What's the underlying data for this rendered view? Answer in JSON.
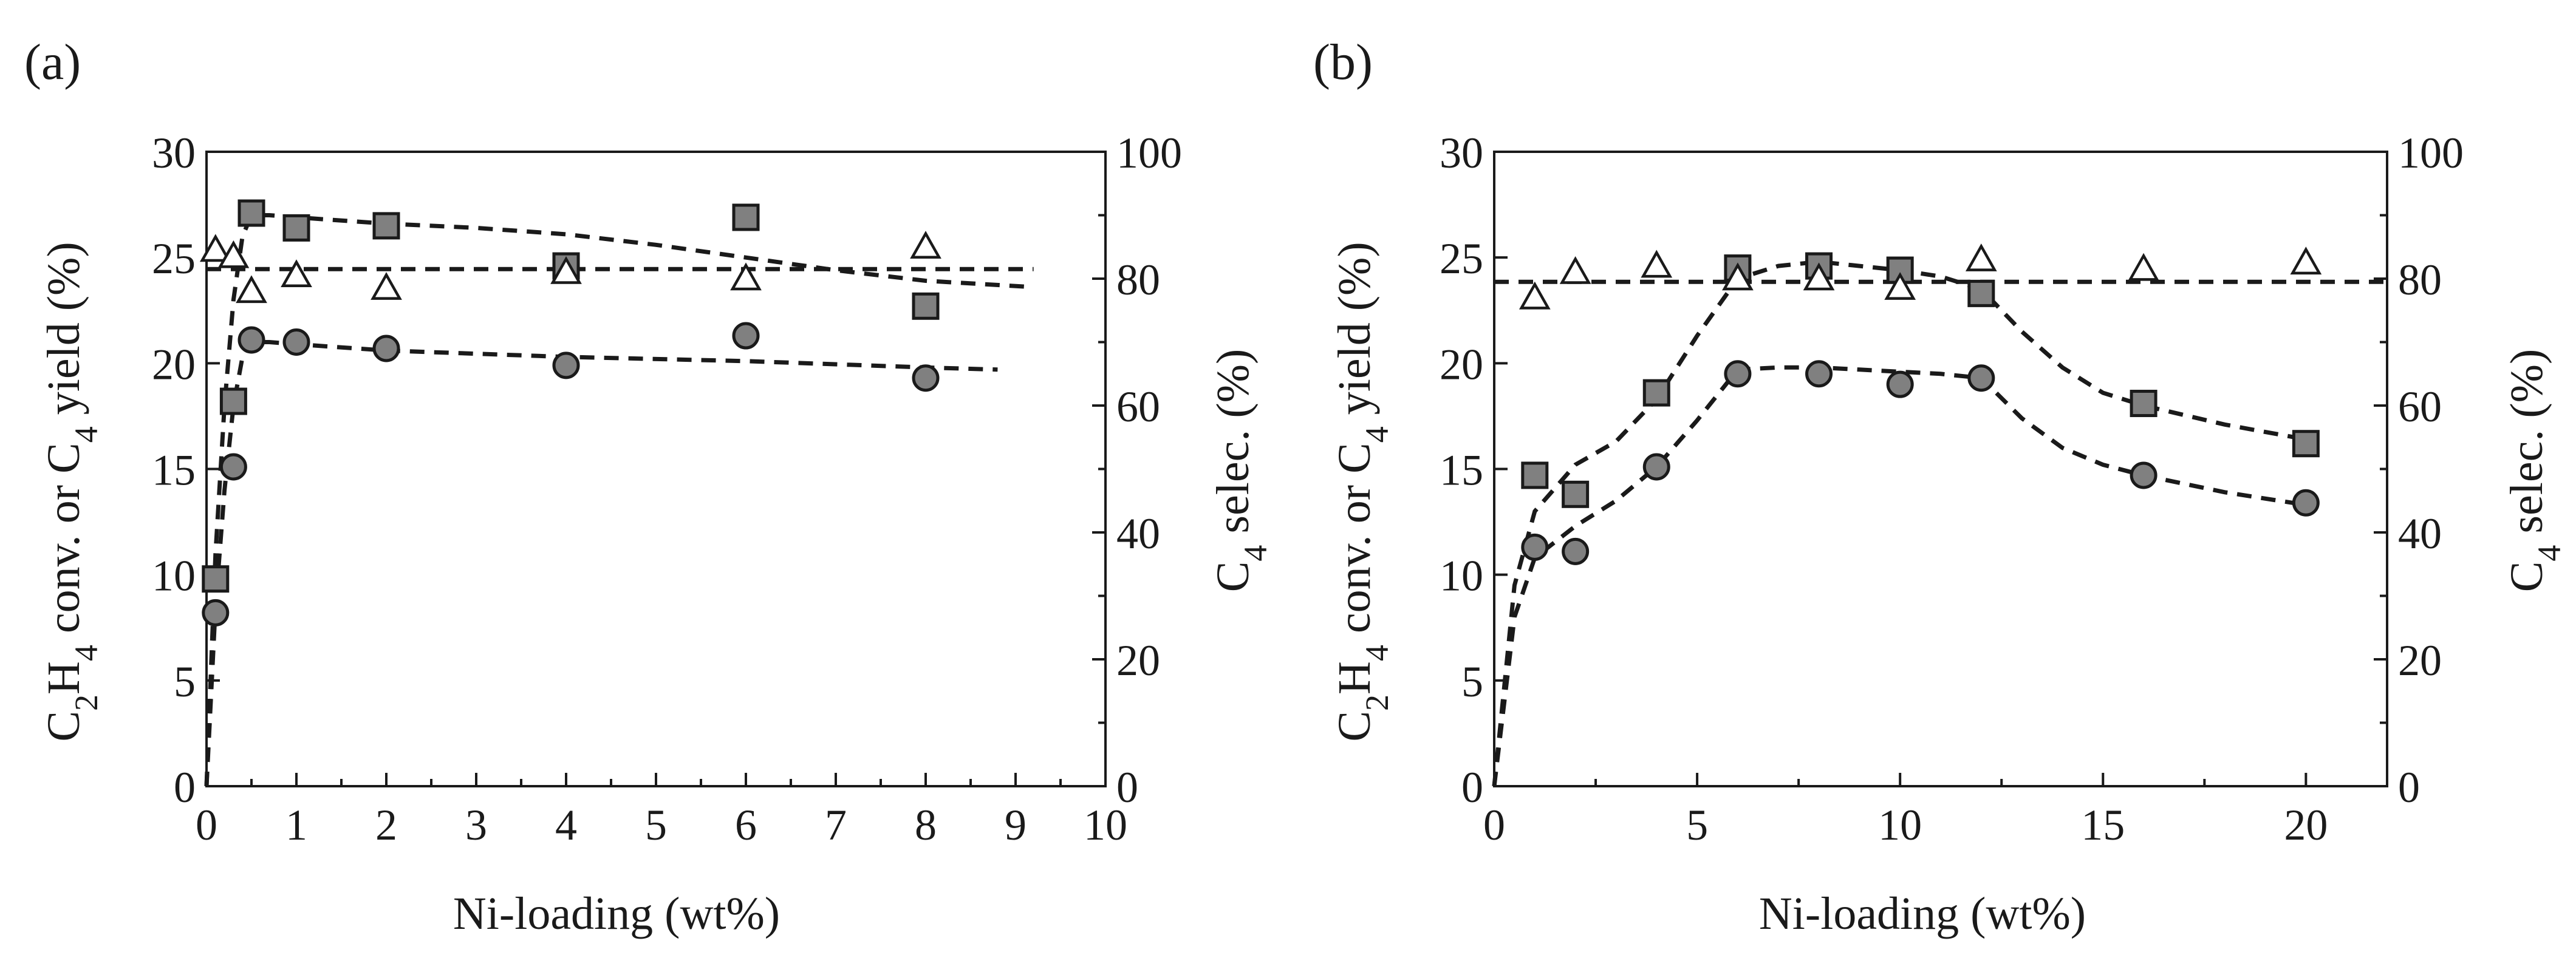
{
  "chart_data": [
    {
      "type": "scatter",
      "panel_label": "(a)",
      "xlabel": "Ni-loading (wt%)",
      "ylabel_left": {
        "prefix": "C",
        "s1": "2",
        "mid1": "H",
        "s2": "4",
        "mid2": " conv. or C",
        "s3": "4",
        "suffix": " yield (%)"
      },
      "ylabel_right": {
        "prefix": "C",
        "s1": "4",
        "suffix": " selec. (%)"
      },
      "xlim": [
        0,
        10
      ],
      "ylim_left": [
        0,
        30
      ],
      "ylim_right": [
        0,
        100
      ],
      "xticks": [
        "0",
        "1",
        "2",
        "3",
        "4",
        "5",
        "6",
        "7",
        "8",
        "9",
        "10"
      ],
      "yticks_left": [
        "0",
        "5",
        "10",
        "15",
        "20",
        "25",
        "30"
      ],
      "yticks_right": [
        "0",
        "20",
        "40",
        "60",
        "80",
        "100"
      ],
      "series": [
        {
          "name": "C2H4 conversion",
          "marker": "square",
          "axis": "left",
          "x": [
            0.1,
            0.3,
            0.5,
            1,
            2,
            4,
            6,
            8
          ],
          "y": [
            9.8,
            18.2,
            27.1,
            26.4,
            26.5,
            24.6,
            26.9,
            22.7
          ]
        },
        {
          "name": "C4 yield",
          "marker": "circle",
          "axis": "left",
          "x": [
            0.1,
            0.3,
            0.5,
            1,
            2,
            4,
            6,
            8
          ],
          "y": [
            8.2,
            15.1,
            21.1,
            21.0,
            20.7,
            19.9,
            21.3,
            19.3
          ]
        },
        {
          "name": "C4 selectivity",
          "marker": "triangle",
          "axis": "right",
          "x": [
            0.1,
            0.3,
            0.5,
            1,
            2,
            4,
            6,
            8
          ],
          "y": [
            84.5,
            83.5,
            78.0,
            80.5,
            78.5,
            81.0,
            80.0,
            85.0
          ]
        }
      ],
      "fits": [
        {
          "axis": "left",
          "x": [
            0,
            0.1,
            0.2,
            0.3,
            0.4,
            0.5,
            0.7,
            1,
            2,
            3,
            4,
            5,
            6,
            7,
            8,
            9.2
          ],
          "y": [
            0,
            11,
            18,
            23,
            26,
            27,
            27,
            26.9,
            26.6,
            26.4,
            26.1,
            25.6,
            25,
            24.4,
            23.9,
            23.6
          ]
        },
        {
          "axis": "left",
          "x": [
            0,
            0.1,
            0.2,
            0.3,
            0.4,
            0.5,
            0.7,
            1,
            2,
            4,
            6,
            8,
            8.8
          ],
          "y": [
            0,
            8.5,
            14,
            18,
            20.3,
            21,
            21,
            20.9,
            20.6,
            20.3,
            20.1,
            19.8,
            19.7
          ]
        },
        {
          "axis": "right",
          "x": [
            0,
            9.2
          ],
          "y": [
            81.5,
            81.5
          ]
        }
      ]
    },
    {
      "type": "scatter",
      "panel_label": "(b)",
      "xlabel": "Ni-loading (wt%)",
      "ylabel_left": {
        "prefix": "C",
        "s1": "2",
        "mid1": "H",
        "s2": "4",
        "mid2": " conv. or C",
        "s3": "4",
        "suffix": " yield (%)"
      },
      "ylabel_right": {
        "prefix": "C",
        "s1": "4",
        "suffix": " selec. (%)"
      },
      "xlim": [
        0,
        22
      ],
      "ylim_left": [
        0,
        30
      ],
      "ylim_right": [
        0,
        100
      ],
      "xticks": [
        "0",
        "5",
        "10",
        "15",
        "20"
      ],
      "yticks_left": [
        "0",
        "5",
        "10",
        "15",
        "20",
        "25",
        "30"
      ],
      "yticks_right": [
        "0",
        "20",
        "40",
        "60",
        "80",
        "100"
      ],
      "series": [
        {
          "name": "C2H4 conversion",
          "marker": "square",
          "axis": "left",
          "x": [
            1,
            2,
            4,
            6,
            8,
            10,
            12,
            16,
            20
          ],
          "y": [
            14.7,
            13.8,
            18.6,
            24.5,
            24.6,
            24.4,
            23.3,
            18.1,
            16.2
          ]
        },
        {
          "name": "C4 yield",
          "marker": "circle",
          "axis": "left",
          "x": [
            1,
            2,
            4,
            6,
            8,
            10,
            12,
            16,
            20
          ],
          "y": [
            11.3,
            11.1,
            15.1,
            19.5,
            19.5,
            19.0,
            19.3,
            14.7,
            13.4
          ]
        },
        {
          "name": "C4 selectivity",
          "marker": "triangle",
          "axis": "right",
          "x": [
            1,
            2,
            4,
            6,
            8,
            10,
            12,
            16,
            20
          ],
          "y": [
            77.0,
            81.0,
            82.0,
            80.0,
            80.0,
            78.5,
            83.0,
            81.5,
            82.5
          ]
        }
      ],
      "fits": [
        {
          "axis": "left",
          "x": [
            0,
            0.5,
            1,
            2,
            3,
            4,
            5,
            6,
            7,
            8,
            9,
            10,
            11,
            12,
            13,
            14,
            15,
            16,
            18,
            20
          ],
          "y": [
            0,
            9.5,
            13,
            15.2,
            16.3,
            18.3,
            21.3,
            24,
            24.6,
            24.8,
            24.6,
            24.4,
            24.1,
            23.5,
            21.5,
            19.8,
            18.6,
            18,
            17.1,
            16.4
          ]
        },
        {
          "axis": "left",
          "x": [
            0,
            0.5,
            1,
            2,
            3,
            4,
            5,
            6,
            7,
            8,
            9,
            10,
            11,
            12,
            13,
            14,
            15,
            16,
            18,
            20
          ],
          "y": [
            0,
            8,
            10.8,
            12.3,
            13.5,
            15.1,
            17.3,
            19.7,
            19.8,
            19.8,
            19.7,
            19.6,
            19.5,
            19.3,
            17.4,
            16,
            15.2,
            14.7,
            13.9,
            13.3
          ]
        },
        {
          "axis": "right",
          "x": [
            0,
            22
          ],
          "y": [
            79.5,
            79.5
          ]
        }
      ]
    }
  ]
}
